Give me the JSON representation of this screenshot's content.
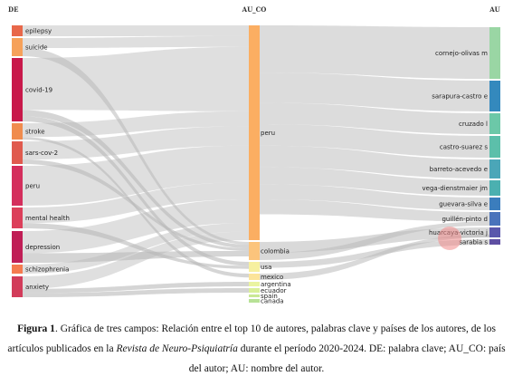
{
  "columns": {
    "left": "DE",
    "middle": "AU_CO",
    "right": "AU"
  },
  "left_nodes": [
    {
      "label": "epilepsy",
      "color": "#e8684a"
    },
    {
      "label": "suicide",
      "color": "#f6a15a"
    },
    {
      "label": "covid-19",
      "color": "#c8184a"
    },
    {
      "label": "stroke",
      "color": "#f08c4e"
    },
    {
      "label": "sars-cov-2",
      "color": "#e05a4e"
    },
    {
      "label": "peru",
      "color": "#d42e5c"
    },
    {
      "label": "mental health",
      "color": "#dc3f5a"
    },
    {
      "label": "depression",
      "color": "#c01e56"
    },
    {
      "label": "schizophrenia",
      "color": "#f57b4f"
    },
    {
      "label": "anxiety",
      "color": "#d23c5a"
    }
  ],
  "middle_nodes": [
    {
      "label": "peru",
      "color": "#fbae62"
    },
    {
      "label": "colombia",
      "color": "#fbc47c"
    },
    {
      "label": "usa",
      "color": "#f6f0a0"
    },
    {
      "label": "mexico",
      "color": "#fce49a"
    },
    {
      "label": "argentina",
      "color": "#eaf4a0"
    },
    {
      "label": "ecuador",
      "color": "#d9ef98"
    },
    {
      "label": "spain",
      "color": "#c9e894"
    },
    {
      "label": "canada",
      "color": "#b7e196"
    }
  ],
  "right_nodes": [
    {
      "label": "cornejo-olivas m",
      "color": "#9ad6a4"
    },
    {
      "label": "sarapura-castro e",
      "color": "#3489bd"
    },
    {
      "label": "cruzado l",
      "color": "#6cc8a8"
    },
    {
      "label": "castro-suarez s",
      "color": "#5cbfaa"
    },
    {
      "label": "barreto-acevedo e",
      "color": "#4ba6b8"
    },
    {
      "label": "vega-dienstmaier jm",
      "color": "#4bb0b0"
    },
    {
      "label": "guevara-silva e",
      "color": "#3b7dbd"
    },
    {
      "label": "guillén-pinto d",
      "color": "#4a73bb"
    },
    {
      "label": "huarcaya-victoria j",
      "color": "#5a57ac"
    },
    {
      "label": "sarabia s",
      "color": "#5e4fa2"
    }
  ],
  "caption": {
    "label": "Figura 1",
    "text_1": ". Gráfica de tres campos: Relación entre el top 10 de autores, palabras clave y países de los autores, de los artículos publicados en la ",
    "journal": "Revista de Neuro-Psiquiatría",
    "text_2": " durante el período 2020-2024. DE: palabra clave; AU_CO: país del autor; AU: nombre del autor."
  }
}
